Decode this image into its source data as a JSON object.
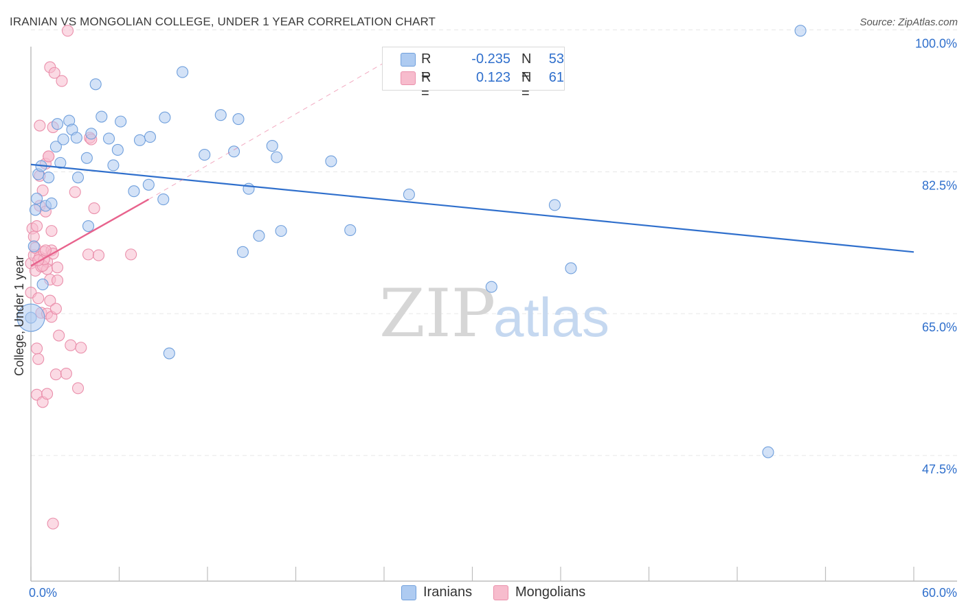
{
  "header": {
    "title": "IRANIAN VS MONGOLIAN COLLEGE, UNDER 1 YEAR CORRELATION CHART",
    "source": "Source: ZipAtlas.com"
  },
  "watermark": {
    "zip": "ZIP",
    "atlas": "atlas"
  },
  "legend": {
    "rows": [
      {
        "r_label": "R =",
        "r_value": "-0.235",
        "n_label": "N =",
        "n_value": "53",
        "color": "#aecbf1"
      },
      {
        "r_label": "R =",
        "r_value": "0.123",
        "n_label": "N =",
        "n_value": "61",
        "color": "#f7bccd"
      }
    ]
  },
  "bottom_legend": [
    {
      "label": "Iranians",
      "color": "#aecbf1"
    },
    {
      "label": "Mongolians",
      "color": "#f7bccd"
    }
  ],
  "chart_data": {
    "type": "scatter",
    "xlabel": "",
    "ylabel": "College, Under 1 year",
    "xlim": [
      0,
      60
    ],
    "ylim": [
      32,
      102
    ],
    "x_tick_labels": [
      {
        "value": 0,
        "label": "0.0%"
      },
      {
        "value": 60,
        "label": "60.0%"
      }
    ],
    "y_tick_labels": [
      {
        "value": 100,
        "label": "100.0%"
      },
      {
        "value": 82.5,
        "label": "82.5%"
      },
      {
        "value": 65,
        "label": "65.0%"
      },
      {
        "value": 47.5,
        "label": "47.5%"
      }
    ],
    "colors": {
      "iranians_fill": "#aecbf1",
      "iranians_stroke": "#6f9fdc",
      "iranians_line": "#2f6fcc",
      "mongolians_fill": "#f7bccd",
      "mongolians_stroke": "#ea8fab",
      "mongolians_line": "#e8638d",
      "tick_label": "#2f6fcc",
      "grid": "#e6e6e6"
    },
    "series": [
      {
        "name": "Iranians",
        "points": [
          [
            0.0,
            64.5
          ],
          [
            0.2,
            73.3
          ],
          [
            0.3,
            77.8
          ],
          [
            0.4,
            79.2
          ],
          [
            0.5,
            82.2
          ],
          [
            0.7,
            83.2
          ],
          [
            0.8,
            68.6
          ],
          [
            1.0,
            78.3
          ],
          [
            1.2,
            81.8
          ],
          [
            1.4,
            78.6
          ],
          [
            1.7,
            85.6
          ],
          [
            1.8,
            88.4
          ],
          [
            2.2,
            86.5
          ],
          [
            2.0,
            83.6
          ],
          [
            2.6,
            88.8
          ],
          [
            2.8,
            87.7
          ],
          [
            3.2,
            81.8
          ],
          [
            3.1,
            86.7
          ],
          [
            3.8,
            84.2
          ],
          [
            3.9,
            75.8
          ],
          [
            4.1,
            87.2
          ],
          [
            4.4,
            93.3
          ],
          [
            4.8,
            89.3
          ],
          [
            5.3,
            86.6
          ],
          [
            5.6,
            83.3
          ],
          [
            5.9,
            85.2
          ],
          [
            6.1,
            88.7
          ],
          [
            7.0,
            80.1
          ],
          [
            7.4,
            86.4
          ],
          [
            8.0,
            80.9
          ],
          [
            8.1,
            86.8
          ],
          [
            9.0,
            79.1
          ],
          [
            9.1,
            89.2
          ],
          [
            9.4,
            60.1
          ],
          [
            10.3,
            94.8
          ],
          [
            11.8,
            84.6
          ],
          [
            12.9,
            89.5
          ],
          [
            13.8,
            85.0
          ],
          [
            14.1,
            89.0
          ],
          [
            14.4,
            72.6
          ],
          [
            14.8,
            80.4
          ],
          [
            15.5,
            74.6
          ],
          [
            16.4,
            85.7
          ],
          [
            16.7,
            84.3
          ],
          [
            17.0,
            75.2
          ],
          [
            20.4,
            83.8
          ],
          [
            21.7,
            75.3
          ],
          [
            25.7,
            79.7
          ],
          [
            31.3,
            68.3
          ],
          [
            35.6,
            78.4
          ],
          [
            36.7,
            70.6
          ],
          [
            50.1,
            47.9
          ],
          [
            52.3,
            99.9
          ]
        ],
        "trend": {
          "x": [
            0,
            60
          ],
          "y": [
            83.4,
            72.6
          ]
        }
      },
      {
        "name": "Mongolians",
        "points": [
          [
            0.0,
            67.6
          ],
          [
            0.0,
            71.2
          ],
          [
            0.1,
            75.5
          ],
          [
            0.2,
            74.5
          ],
          [
            0.2,
            72.2
          ],
          [
            0.3,
            73.1
          ],
          [
            0.3,
            70.3
          ],
          [
            0.4,
            55.0
          ],
          [
            0.4,
            60.7
          ],
          [
            0.4,
            75.8
          ],
          [
            0.5,
            59.4
          ],
          [
            0.5,
            66.9
          ],
          [
            0.6,
            88.2
          ],
          [
            0.6,
            82.0
          ],
          [
            0.6,
            78.3
          ],
          [
            0.6,
            72.0
          ],
          [
            0.7,
            70.8
          ],
          [
            0.7,
            65.1
          ],
          [
            0.8,
            54.1
          ],
          [
            0.8,
            80.2
          ],
          [
            0.9,
            72.6
          ],
          [
            1.0,
            83.5
          ],
          [
            1.0,
            77.6
          ],
          [
            1.1,
            71.4
          ],
          [
            1.1,
            70.5
          ],
          [
            1.1,
            65.0
          ],
          [
            1.1,
            55.1
          ],
          [
            1.2,
            84.4
          ],
          [
            1.2,
            84.4
          ],
          [
            1.3,
            95.4
          ],
          [
            1.3,
            69.2
          ],
          [
            1.3,
            66.6
          ],
          [
            1.4,
            75.2
          ],
          [
            1.4,
            72.8
          ],
          [
            1.4,
            64.6
          ],
          [
            1.5,
            88.0
          ],
          [
            1.5,
            72.4
          ],
          [
            1.5,
            39.1
          ],
          [
            1.6,
            94.7
          ],
          [
            1.7,
            65.6
          ],
          [
            1.7,
            57.5
          ],
          [
            1.8,
            70.7
          ],
          [
            1.8,
            69.1
          ],
          [
            2.1,
            93.7
          ],
          [
            2.4,
            57.6
          ],
          [
            2.7,
            61.1
          ],
          [
            3.0,
            80.0
          ],
          [
            3.2,
            55.8
          ],
          [
            3.4,
            60.8
          ],
          [
            3.9,
            72.3
          ],
          [
            4.0,
            86.7
          ],
          [
            4.1,
            86.5
          ],
          [
            4.3,
            78.0
          ],
          [
            4.6,
            72.2
          ],
          [
            0.8,
            70.9
          ],
          [
            0.9,
            71.7
          ],
          [
            0.5,
            71.6
          ],
          [
            1.0,
            72.8
          ],
          [
            1.9,
            62.3
          ],
          [
            2.5,
            99.9
          ],
          [
            6.8,
            72.3
          ]
        ],
        "trend": {
          "x": [
            0,
            8
          ],
          "y": [
            70.9,
            79.1
          ]
        },
        "trend_extended": {
          "x": [
            8,
            25
          ],
          "y": [
            79.1,
            97.0
          ]
        }
      }
    ]
  }
}
